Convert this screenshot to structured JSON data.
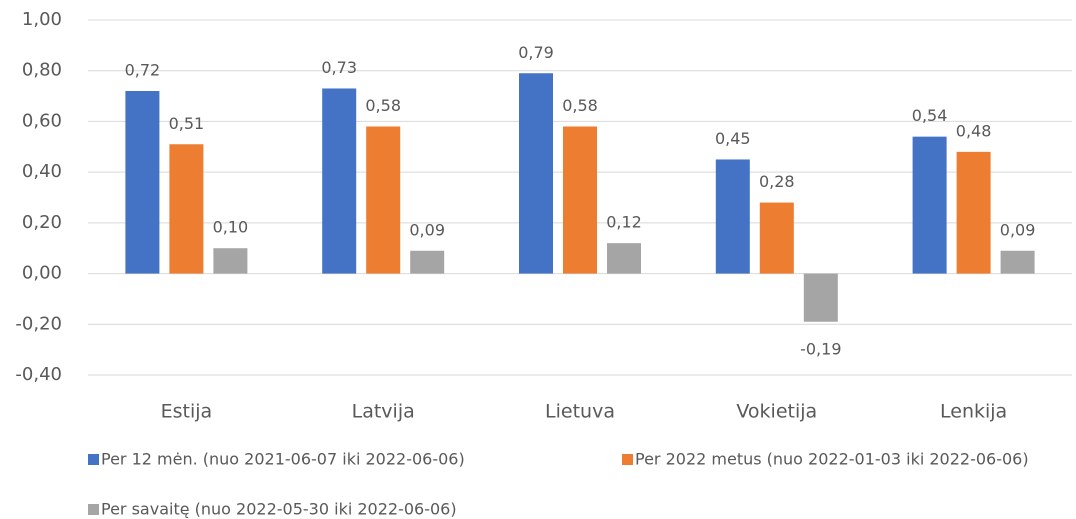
{
  "chart_data": {
    "type": "bar",
    "categories": [
      "Estija",
      "Latvija",
      "Lietuva",
      "Vokietija",
      "Lenkija"
    ],
    "series": [
      {
        "name": "Per 12 mėn. (nuo 2021-06-07 iki 2022-06-06)",
        "color": "#4472c4",
        "values": [
          0.72,
          0.73,
          0.79,
          0.45,
          0.54
        ],
        "value_labels": [
          "0,72",
          "0,73",
          "0,79",
          "0,45",
          "0,54"
        ]
      },
      {
        "name": "Per 2022 metus (nuo 2022-01-03 iki 2022-06-06)",
        "color": "#ed7d31",
        "values": [
          0.51,
          0.58,
          0.58,
          0.28,
          0.48
        ],
        "value_labels": [
          "0,51",
          "0,58",
          "0,58",
          "0,28",
          "0,48"
        ]
      },
      {
        "name": "Per savaitę (nuo 2022-05-30 iki 2022-06-06)",
        "color": "#a5a5a5",
        "values": [
          0.1,
          0.09,
          0.12,
          -0.19,
          0.09
        ],
        "value_labels": [
          "0,10",
          "0,09",
          "0,12",
          "-0,19",
          "0,09"
        ]
      }
    ],
    "ylim": [
      -0.4,
      1.0
    ],
    "yticks": [
      {
        "value": -0.4,
        "label": "-0,40"
      },
      {
        "value": -0.2,
        "label": "-0,20"
      },
      {
        "value": 0,
        "label": "0,00"
      },
      {
        "value": 0.2,
        "label": "0,20"
      },
      {
        "value": 0.4,
        "label": "0,40"
      },
      {
        "value": 0.6,
        "label": "0,60"
      },
      {
        "value": 0.8,
        "label": "0,80"
      },
      {
        "value": 1.0,
        "label": "1,00"
      }
    ],
    "grid": true
  }
}
